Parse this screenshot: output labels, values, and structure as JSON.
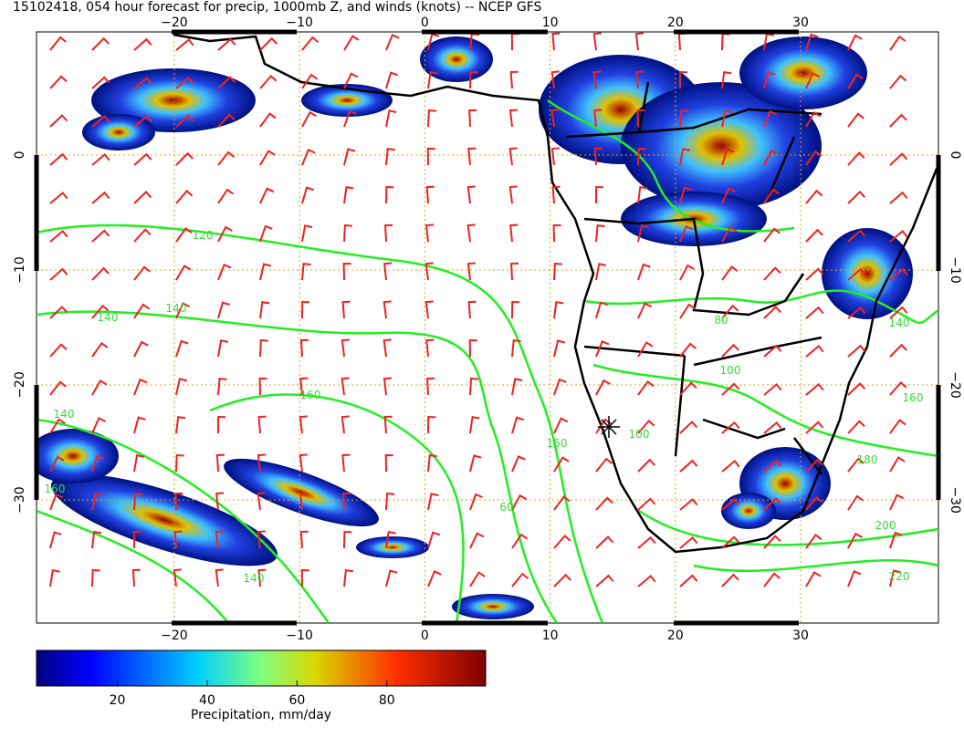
{
  "title": "15102418, 054 hour forecast for precip, 1000mb Z, and winds (knots) -- NCEP GFS",
  "map": {
    "xlim": [
      -31,
      41
    ],
    "ylim": [
      -40.7,
      10.7
    ],
    "xticks": [
      {
        "value": -20,
        "label": "−20"
      },
      {
        "value": -10,
        "label": "−10"
      },
      0,
      10,
      20,
      30
    ],
    "yticks": [
      0,
      {
        "value": -10,
        "label": "−10"
      },
      {
        "value": -20,
        "label": "−20"
      },
      {
        "value": -30,
        "label": "−30"
      }
    ],
    "contour_labels": [
      "120",
      "140",
      "140",
      "160",
      "140",
      "160",
      "140",
      "160",
      "180",
      "200",
      "220",
      "80",
      "100",
      "140",
      "160",
      "100",
      "60"
    ]
  },
  "colorbar": {
    "lim": [
      2,
      102
    ],
    "ticks": [
      20,
      40,
      60,
      80
    ],
    "label": "Precipitation, mm/day"
  }
}
